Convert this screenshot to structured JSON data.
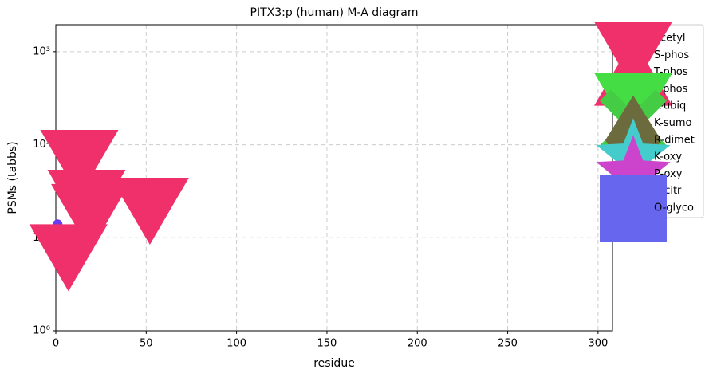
{
  "chart_data": {
    "type": "scatter",
    "title": "PITX3:p (human) M-A diagram",
    "x_label": "residue",
    "y_label": "PSMs (tabbs)",
    "xlim": [
      0,
      308
    ],
    "xticks": [
      0,
      50,
      100,
      150,
      200,
      250,
      300
    ],
    "ylim": [
      1,
      1950
    ],
    "log_y": true,
    "yticks": [
      {
        "value": 1,
        "label": "10⁰"
      },
      {
        "value": 10,
        "label": "10¹"
      },
      {
        "value": 100,
        "label": "10²"
      },
      {
        "value": 1000,
        "label": "10³"
      }
    ],
    "grid": true,
    "legend": "outside-right",
    "series": [
      {
        "name": "acetyl",
        "color": "#6a3bf0",
        "marker": "circle",
        "x": [
          1
        ],
        "values": [
          14
        ]
      },
      {
        "name": "S-phos",
        "color": "#f0306a",
        "marker": "triangle-down",
        "x": [
          13,
          17,
          19,
          7,
          52
        ],
        "values": [
          63,
          23.5,
          16.5,
          6.1,
          19.3
        ]
      },
      {
        "name": "T-phos",
        "color": "#f0306a",
        "marker": "triangle-up",
        "x": [],
        "values": []
      },
      {
        "name": "Y-phos",
        "color": "#f0306a",
        "marker": "circle",
        "x": [],
        "values": []
      },
      {
        "name": "K-ubiq",
        "color": "#44dd44",
        "marker": "triangle-down",
        "x": [],
        "values": []
      },
      {
        "name": "K-sumo",
        "color": "#44cc44",
        "marker": "cross",
        "x": [],
        "values": []
      },
      {
        "name": "R-dimet",
        "color": "#6b6b3d",
        "marker": "diamond",
        "x": [],
        "values": []
      },
      {
        "name": "K-oxy",
        "color": "#44cccc",
        "marker": "star",
        "x": [],
        "values": []
      },
      {
        "name": "P-oxy",
        "color": "#cc44cc",
        "marker": "star",
        "x": [],
        "values": []
      },
      {
        "name": "R-citr",
        "color": "#555555",
        "marker": "dot",
        "x": [],
        "values": []
      },
      {
        "name": "O-glyco",
        "color": "#6666ee",
        "marker": "square",
        "x": [],
        "values": []
      }
    ]
  }
}
